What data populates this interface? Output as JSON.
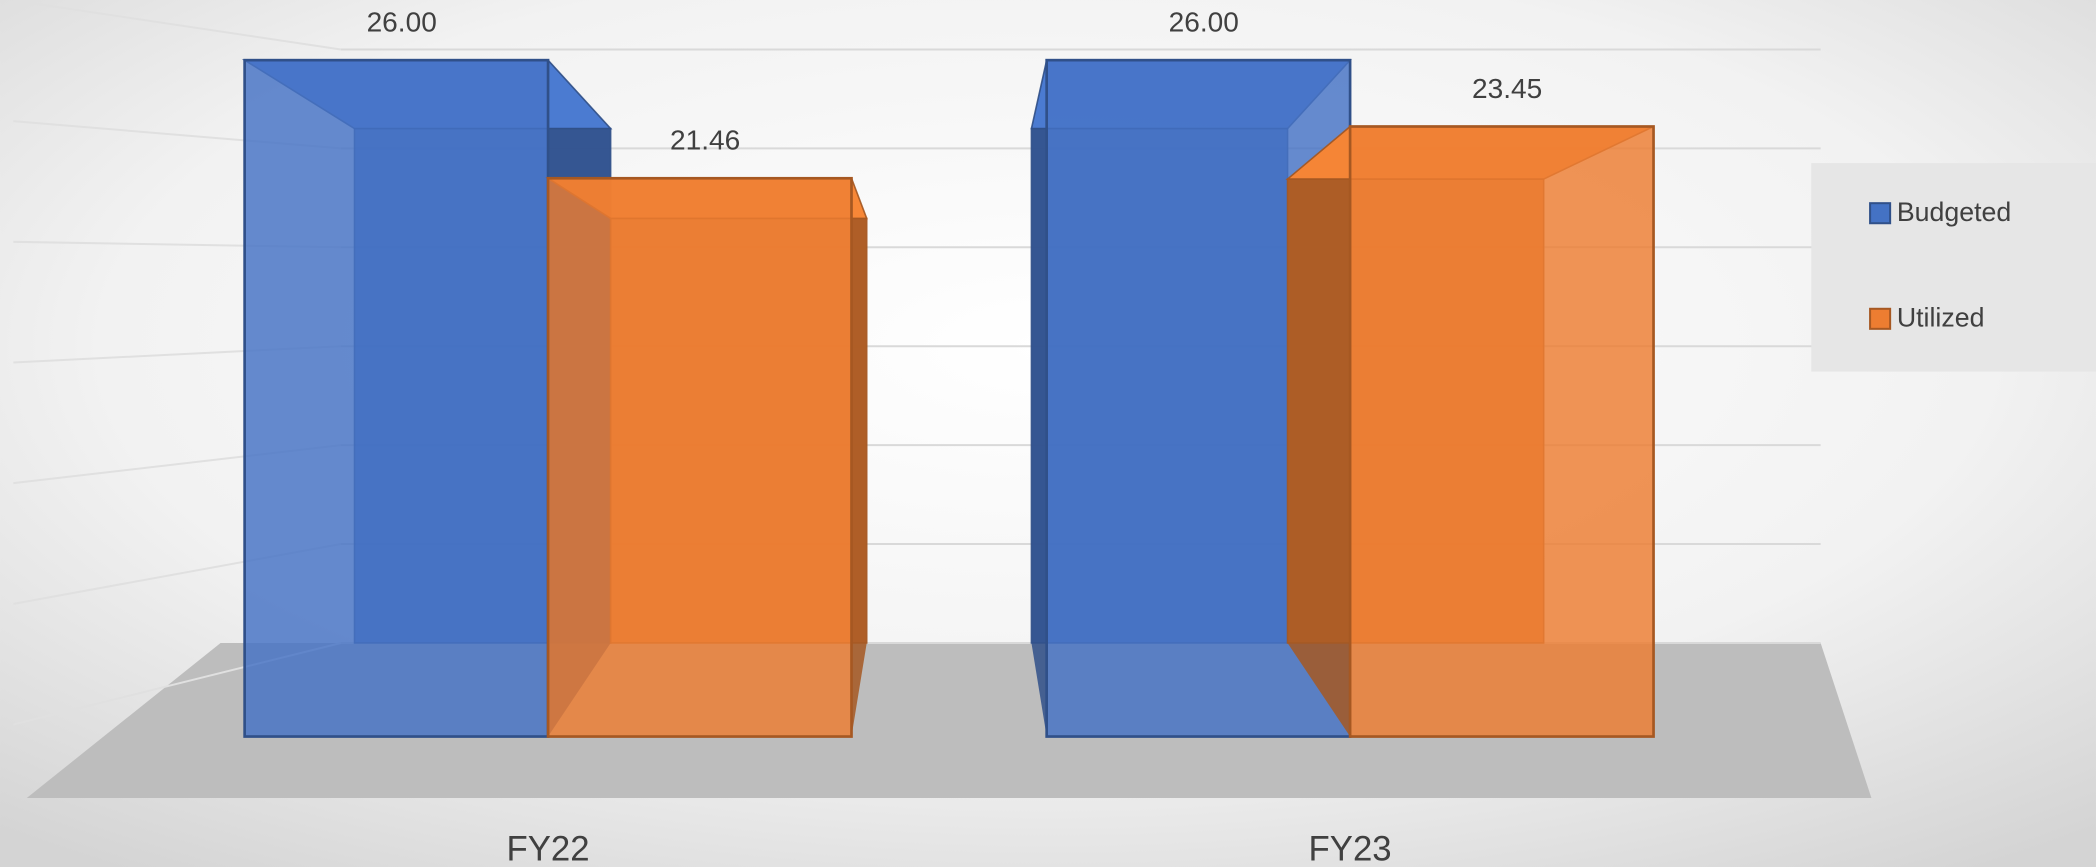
{
  "chart_data": {
    "type": "bar3d",
    "categories": [
      "FY22",
      "FY23"
    ],
    "series": [
      {
        "name": "Budgeted",
        "color": "#4472c4",
        "values": [
          26,
          26
        ],
        "value_labels": [
          "26.00",
          "26.00"
        ]
      },
      {
        "name": "Utilized",
        "color": "#ed7d31",
        "values": [
          21.46,
          23.45
        ],
        "value_labels": [
          "21.46",
          "23.45"
        ]
      }
    ],
    "ylim": [
      0,
      30
    ],
    "yticks": [
      0,
      5,
      10,
      15,
      20,
      25,
      30
    ],
    "grid": true,
    "legend": "right"
  }
}
